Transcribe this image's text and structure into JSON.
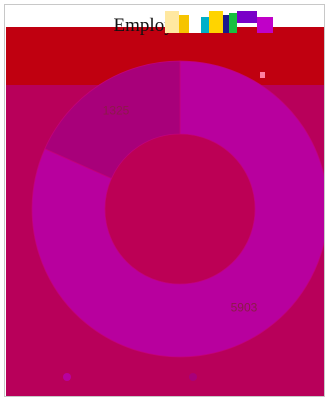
{
  "chart_data": {
    "type": "donut",
    "title": "Employee Ge",
    "slices": [
      {
        "label": "",
        "value": 5903,
        "data_label": "5903",
        "color": "#b8009e"
      },
      {
        "label": "",
        "value": 1325,
        "data_label": "1325",
        "color": "#a8007a"
      }
    ],
    "legend": {
      "placement": "bottom",
      "marker_colors": [
        "#b8009e",
        "#a8007a"
      ]
    },
    "background_colors": {
      "header": "#c00010",
      "plot": "#b8005a",
      "hole": "#bc0055"
    }
  },
  "colors": {
    "title_text": "#111111",
    "slice_label_text": "#8c1a4a"
  }
}
